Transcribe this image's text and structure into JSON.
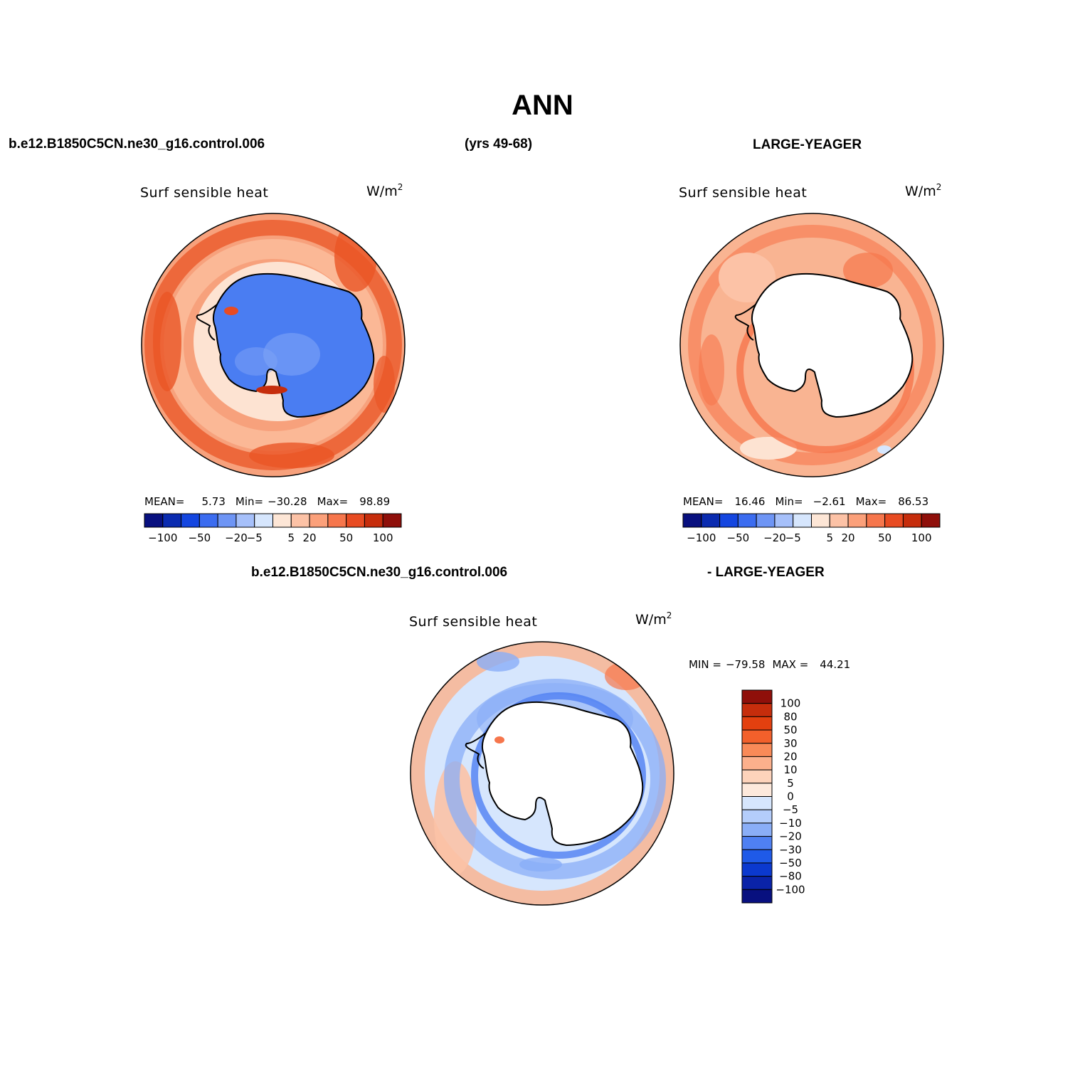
{
  "title": "ANN",
  "header": {
    "left": "b.e12.B1850C5CN.ne30_g16.control.006",
    "middle": "(yrs 49-68)",
    "right": "LARGE-YEAGER"
  },
  "diff_header": {
    "left": "b.e12.B1850C5CN.ne30_g16.control.006",
    "right": "- LARGE-YEAGER"
  },
  "variable": "Surf  sensible  heat",
  "units": "W/m",
  "units_exp": "2",
  "panels": [
    {
      "name": "model",
      "mean_label": "MEAN=",
      "mean": "5.73",
      "min_label": "Min=",
      "min": "−30.28",
      "max_label": "Max=",
      "max": "98.89"
    },
    {
      "name": "obs",
      "mean_label": "MEAN=",
      "mean": "16.46",
      "min_label": "Min=",
      "min": "−2.61",
      "max_label": "Max=",
      "max": "86.53"
    }
  ],
  "diff_stats": {
    "min_label": "MIN =",
    "min": "−79.58",
    "max_label": "MAX =",
    "max": "44.21"
  },
  "colorbar_horizontal": {
    "colors": [
      "#08107f",
      "#0a2bb0",
      "#1446e0",
      "#3b6cf0",
      "#6e95f5",
      "#a6c0fa",
      "#d6e6fd",
      "#fde6d6",
      "#fcc2a6",
      "#fba07a",
      "#f6764c",
      "#e84b22",
      "#c62d0c",
      "#8f0f0a"
    ],
    "labels": [
      "−100",
      "−50",
      "−20",
      "−5",
      "5",
      "20",
      "50",
      "100"
    ]
  },
  "colorbar_vertical": {
    "colors": [
      "#8f0f0a",
      "#c62d0c",
      "#e3400f",
      "#f2602b",
      "#f98a58",
      "#fcb08c",
      "#fdd3bb",
      "#fde9dc",
      "#d6e6fd",
      "#b4cdfb",
      "#8aaef7",
      "#4f80f2",
      "#1f5ae8",
      "#0b39cf",
      "#0a23a8",
      "#08107f"
    ],
    "labels": [
      "100",
      "80",
      "50",
      "30",
      "20",
      "10",
      "5",
      "0",
      "−5",
      "−10",
      "−20",
      "−30",
      "−50",
      "−80",
      "−100"
    ]
  },
  "colors": {
    "land_blue": "#4a7df2",
    "land_blue_light": "#7fa4f6",
    "ocean_base_model": "#f7a17c",
    "ocean_base_obs": "#f9b492",
    "ocean_base_diff": "#d6e6fd",
    "strong_red": "#ea5526",
    "light_peach": "#fde3d2"
  }
}
